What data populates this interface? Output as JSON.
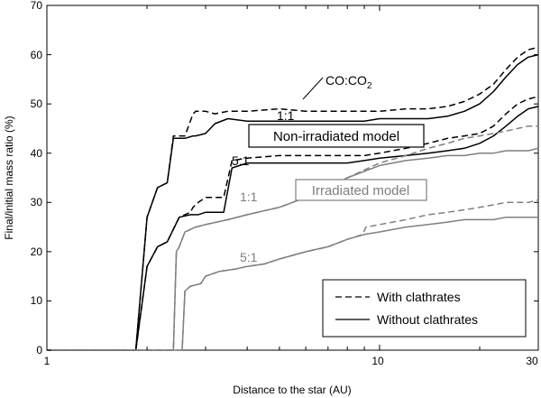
{
  "chart_data": {
    "type": "line",
    "xlabel": "Distance to the star  (AU)",
    "ylabel": "Final/initial mass ratio  (%)",
    "xscale": "log",
    "xlim": [
      1,
      30
    ],
    "ylim": [
      0,
      70
    ],
    "grid": false,
    "legend_position": "bottom-right",
    "x_tick_labels": [
      "1",
      "10",
      "30"
    ],
    "y_tick_labels": [
      "0",
      "10",
      "20",
      "30",
      "40",
      "50",
      "60",
      "70"
    ],
    "legend": [
      {
        "label": "With clathrates",
        "style": "dashed"
      },
      {
        "label": "Without clathrates",
        "style": "solid"
      }
    ],
    "annotations": {
      "co_co2": "CO:CO",
      "co_co2_subscript": "2",
      "nonirr_1to1": "1:1",
      "nonirr_5to1": "5:1",
      "irr_1to1": "1:1",
      "irr_5to1": "5:1",
      "nonirr_model": "Non-irradiated model",
      "irr_model": "Irradiated model"
    },
    "colors": {
      "non_irradiated": "#000000",
      "irradiated": "#7f7f7f"
    },
    "series": [
      {
        "group": "non-irradiated",
        "ratio": "1:1",
        "clathrates": true,
        "x": [
          1,
          1.85,
          2.0,
          2.15,
          2.3,
          2.4,
          2.6,
          2.75,
          2.8,
          3.0,
          3.2,
          3.5,
          4.0,
          5.0,
          6.0,
          7.0,
          8.0,
          9.0,
          10.0,
          12.0,
          14.0,
          16.0,
          18.0,
          20.0,
          22.0,
          24.0,
          26.0,
          28.0,
          30.0
        ],
        "y": [
          0,
          0,
          27,
          33,
          34,
          43.5,
          43.5,
          48,
          48.5,
          48.5,
          48,
          48.5,
          48.5,
          49,
          48.5,
          48.5,
          48.5,
          48.5,
          48.5,
          49,
          49,
          49.5,
          50.5,
          52,
          54,
          57,
          59.5,
          61,
          61.5
        ]
      },
      {
        "group": "non-irradiated",
        "ratio": "1:1",
        "clathrates": false,
        "x": [
          1,
          1.85,
          2.0,
          2.15,
          2.3,
          2.4,
          2.6,
          2.75,
          2.8,
          3.0,
          3.2,
          3.5,
          4.0,
          5.0,
          6.0,
          7.0,
          8.0,
          9.0,
          10.0,
          12.0,
          14.0,
          16.0,
          18.0,
          20.0,
          22.0,
          24.0,
          26.0,
          28.0,
          30.0
        ],
        "y": [
          0,
          0,
          27,
          33,
          34,
          43,
          43,
          43.5,
          43.5,
          44,
          46,
          47,
          46.5,
          46.5,
          46.5,
          46.5,
          46.5,
          46.5,
          47,
          47,
          47,
          47.5,
          48.5,
          50,
          52.5,
          55.5,
          58,
          59.5,
          60
        ]
      },
      {
        "group": "non-irradiated",
        "ratio": "5:1",
        "clathrates": true,
        "x": [
          1,
          1.85,
          2.0,
          2.15,
          2.3,
          2.5,
          2.7,
          2.75,
          2.85,
          3.0,
          3.4,
          3.6,
          4.0,
          5.0,
          6.0,
          7.0,
          8.0,
          9.0,
          10.0,
          12.0,
          14.0,
          16.0,
          18.0,
          20.0,
          22.0,
          24.0,
          26.0,
          28.0,
          30.0
        ],
        "y": [
          0,
          0,
          17,
          21,
          22,
          27,
          28,
          29,
          30,
          31,
          31,
          38.5,
          39,
          39.5,
          39.5,
          39.5,
          39.5,
          39.5,
          40,
          41,
          42,
          43,
          43.5,
          44,
          45.5,
          48,
          50,
          51,
          51.5
        ]
      },
      {
        "group": "non-irradiated",
        "ratio": "5:1",
        "clathrates": false,
        "x": [
          1,
          1.85,
          2.0,
          2.15,
          2.3,
          2.5,
          2.7,
          2.75,
          2.85,
          3.0,
          3.4,
          3.6,
          4.0,
          5.0,
          6.0,
          7.0,
          8.0,
          9.0,
          10.0,
          12.0,
          14.0,
          16.0,
          18.0,
          20.0,
          22.0,
          24.0,
          26.0,
          28.0,
          30.0
        ],
        "y": [
          0,
          0,
          17,
          21,
          22,
          27,
          27.5,
          27.5,
          27.5,
          28,
          28,
          37,
          38,
          38,
          38,
          38,
          38,
          38.5,
          39,
          39.5,
          40,
          40.5,
          41,
          42,
          43.5,
          45.5,
          47.5,
          49,
          49.5
        ]
      },
      {
        "group": "irradiated",
        "ratio": "1:1",
        "clathrates": true,
        "x": [
          1,
          2.4,
          2.45,
          2.5,
          2.6,
          2.8,
          3.0,
          3.5,
          4.0,
          5.0,
          6.0,
          7.0,
          8.0,
          10.0,
          12.0,
          14.0,
          16.0,
          18.0,
          20.0,
          22.0,
          24.0,
          26.0,
          28.0,
          30.0
        ],
        "y": [
          0,
          0,
          20,
          21,
          24,
          25,
          25.5,
          26.5,
          27.5,
          29,
          31,
          33,
          35,
          38,
          39.5,
          41,
          42,
          43,
          43.5,
          44,
          44.5,
          45,
          45.5,
          45.5
        ]
      },
      {
        "group": "irradiated",
        "ratio": "1:1",
        "clathrates": false,
        "x": [
          1,
          2.4,
          2.45,
          2.5,
          2.6,
          2.8,
          3.0,
          3.5,
          4.0,
          5.0,
          6.0,
          7.0,
          8.0,
          10.0,
          12.0,
          14.0,
          16.0,
          18.0,
          20.0,
          22.0,
          24.0,
          26.0,
          28.0,
          30.0
        ],
        "y": [
          0,
          0,
          20,
          21,
          24,
          25,
          25.5,
          26.5,
          27.5,
          29,
          31,
          33,
          35,
          37.5,
          38.5,
          39,
          39.5,
          39.5,
          40,
          40,
          40.5,
          40.5,
          40.5,
          41
        ]
      },
      {
        "group": "irradiated",
        "ratio": "5:1",
        "clathrates": true,
        "x": [
          1,
          2.55,
          2.6,
          2.7,
          2.9,
          3.0,
          3.3,
          3.7,
          4.0,
          4.5,
          5.0,
          6.0,
          7.0,
          8.0,
          8.9,
          9.1,
          10.0,
          12.0,
          14.0,
          16.0,
          18.0,
          20.0,
          22.0,
          24.0,
          26.0,
          28.0,
          30.0
        ],
        "y": [
          0,
          0,
          12,
          13,
          13.5,
          15,
          16,
          16.5,
          17,
          17.5,
          18.5,
          20,
          21,
          22.5,
          23.5,
          25,
          25.5,
          26.5,
          27.5,
          28,
          28.5,
          29,
          29.5,
          30,
          30,
          30,
          30.5
        ]
      },
      {
        "group": "irradiated",
        "ratio": "5:1",
        "clathrates": false,
        "x": [
          1,
          2.55,
          2.6,
          2.7,
          2.9,
          3.0,
          3.3,
          3.7,
          4.0,
          4.5,
          5.0,
          6.0,
          7.0,
          8.0,
          9.0,
          10.0,
          12.0,
          14.0,
          16.0,
          18.0,
          20.0,
          22.0,
          24.0,
          26.0,
          28.0,
          30.0
        ],
        "y": [
          0,
          0,
          12,
          13,
          13.5,
          15,
          16,
          16.5,
          17,
          17.5,
          18.5,
          20,
          21,
          22.5,
          23.5,
          24,
          25,
          25.5,
          26,
          26.5,
          26.5,
          26.5,
          27,
          27,
          27,
          27
        ]
      }
    ]
  }
}
